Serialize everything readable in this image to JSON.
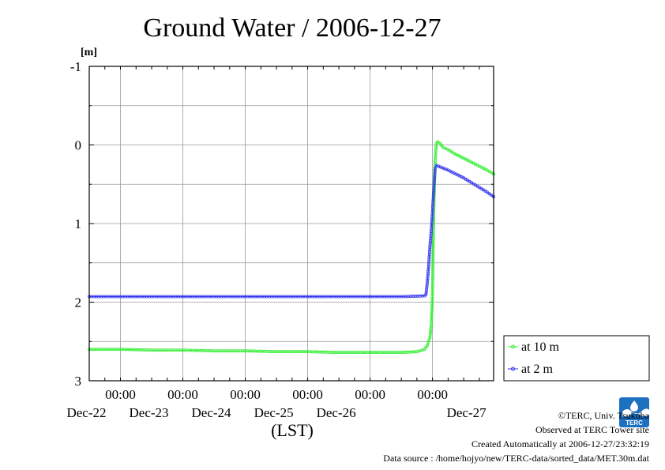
{
  "chart_data": {
    "type": "line",
    "title": "Ground Water / 2006-12-27",
    "ylabel": "[m]",
    "xlabel": "(LST)",
    "y_inverted": true,
    "ylim": [
      -1,
      3
    ],
    "yticks": [
      "-1",
      "0",
      "1",
      "2",
      "3"
    ],
    "xlim": [
      "2006-12-21T12:00",
      "2006-12-27T23:30"
    ],
    "xticks": [
      {
        "time": "00:00",
        "date": "Dec-22"
      },
      {
        "time": "00:00",
        "date": "Dec-23"
      },
      {
        "time": "00:00",
        "date": "Dec-24"
      },
      {
        "time": "00:00",
        "date": "Dec-25"
      },
      {
        "time": "00:00",
        "date": "Dec-26"
      },
      {
        "time": "00:00",
        "date": ""
      }
    ],
    "extra_date_label": "Dec-27",
    "grid": true,
    "legend_position": "right",
    "series": [
      {
        "name": "at 10 m",
        "color": "#33ee33",
        "marker": "circle",
        "points": [
          [
            "2006-12-21T12:00",
            2.6
          ],
          [
            "2006-12-22T00:00",
            2.6
          ],
          [
            "2006-12-22T12:00",
            2.61
          ],
          [
            "2006-12-23T00:00",
            2.61
          ],
          [
            "2006-12-23T12:00",
            2.62
          ],
          [
            "2006-12-24T00:00",
            2.62
          ],
          [
            "2006-12-24T12:00",
            2.63
          ],
          [
            "2006-12-25T00:00",
            2.63
          ],
          [
            "2006-12-25T12:00",
            2.64
          ],
          [
            "2006-12-26T00:00",
            2.64
          ],
          [
            "2006-12-26T12:00",
            2.64
          ],
          [
            "2006-12-26T18:00",
            2.63
          ],
          [
            "2006-12-26T21:00",
            2.6
          ],
          [
            "2006-12-26T22:00",
            2.55
          ],
          [
            "2006-12-26T23:00",
            2.45
          ],
          [
            "2006-12-26T23:30",
            2.3
          ],
          [
            "2006-12-27T00:00",
            1.9
          ],
          [
            "2006-12-27T00:30",
            0.8
          ],
          [
            "2006-12-27T01:00",
            0.2
          ],
          [
            "2006-12-27T01:30",
            -0.02
          ],
          [
            "2006-12-27T02:00",
            -0.04
          ],
          [
            "2006-12-27T03:00",
            -0.02
          ],
          [
            "2006-12-27T04:00",
            0.03
          ],
          [
            "2006-12-27T06:00",
            0.06
          ],
          [
            "2006-12-27T09:00",
            0.12
          ],
          [
            "2006-12-27T12:00",
            0.17
          ],
          [
            "2006-12-27T15:00",
            0.22
          ],
          [
            "2006-12-27T18:00",
            0.27
          ],
          [
            "2006-12-27T21:00",
            0.32
          ],
          [
            "2006-12-27T23:30",
            0.37
          ]
        ]
      },
      {
        "name": "at 2 m",
        "color": "#3333ee",
        "marker": "circle",
        "points": [
          [
            "2006-12-21T12:00",
            1.93
          ],
          [
            "2006-12-22T12:00",
            1.93
          ],
          [
            "2006-12-23T12:00",
            1.93
          ],
          [
            "2006-12-24T12:00",
            1.93
          ],
          [
            "2006-12-25T12:00",
            1.93
          ],
          [
            "2006-12-26T12:00",
            1.93
          ],
          [
            "2006-12-26T21:00",
            1.92
          ],
          [
            "2006-12-26T21:30",
            1.9
          ],
          [
            "2006-12-26T22:00",
            1.75
          ],
          [
            "2006-12-26T22:30",
            1.55
          ],
          [
            "2006-12-26T23:00",
            1.3
          ],
          [
            "2006-12-26T23:30",
            1.1
          ],
          [
            "2006-12-27T00:00",
            0.85
          ],
          [
            "2006-12-27T00:30",
            0.55
          ],
          [
            "2006-12-27T01:00",
            0.3
          ],
          [
            "2006-12-27T01:30",
            0.26
          ],
          [
            "2006-12-27T03:00",
            0.28
          ],
          [
            "2006-12-27T06:00",
            0.32
          ],
          [
            "2006-12-27T09:00",
            0.37
          ],
          [
            "2006-12-27T12:00",
            0.42
          ],
          [
            "2006-12-27T15:00",
            0.48
          ],
          [
            "2006-12-27T18:00",
            0.54
          ],
          [
            "2006-12-27T21:00",
            0.6
          ],
          [
            "2006-12-27T23:30",
            0.66
          ]
        ]
      }
    ]
  },
  "credits": {
    "copyright": "©TERC, Univ. Tsukuba",
    "observed": "Observed at TERC Tower site",
    "created": "Created Automatically at 2006-12-27/23:32:19",
    "source": "Data source : /home/hojyo/new/TERC-data/sorted_data/MET.30m.dat"
  },
  "logo": {
    "text": "TERC",
    "color": "#1d6fc0"
  }
}
